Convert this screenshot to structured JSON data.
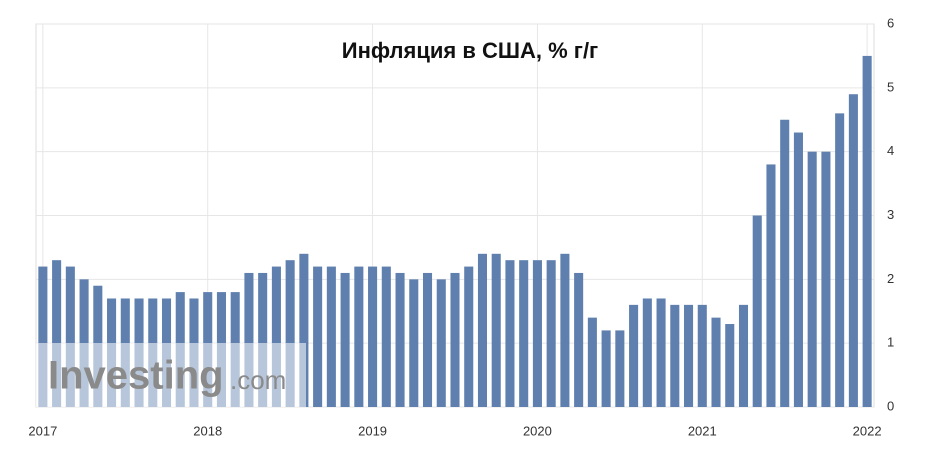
{
  "chart_data": {
    "type": "bar",
    "title": "Инфляция в США, % г/г",
    "watermark": "Investing",
    "watermark_suffix": ".com",
    "categories": [
      "2017",
      null,
      null,
      null,
      null,
      null,
      null,
      null,
      null,
      null,
      null,
      null,
      "2018",
      null,
      null,
      null,
      null,
      null,
      null,
      null,
      null,
      null,
      null,
      null,
      "2019",
      null,
      null,
      null,
      null,
      null,
      null,
      null,
      null,
      null,
      null,
      null,
      "2020",
      null,
      null,
      null,
      null,
      null,
      null,
      null,
      null,
      null,
      null,
      null,
      "2021",
      null,
      null,
      null,
      null,
      null,
      null,
      null,
      null,
      null,
      null,
      null,
      "2022"
    ],
    "values": [
      2.2,
      2.3,
      2.2,
      2.0,
      1.9,
      1.7,
      1.7,
      1.7,
      1.7,
      1.7,
      1.8,
      1.7,
      1.8,
      1.8,
      1.8,
      2.1,
      2.1,
      2.2,
      2.3,
      2.4,
      2.2,
      2.2,
      2.1,
      2.2,
      2.2,
      2.2,
      2.1,
      2.0,
      2.1,
      2.0,
      2.1,
      2.2,
      2.4,
      2.4,
      2.3,
      2.3,
      2.3,
      2.3,
      2.4,
      2.1,
      1.4,
      1.2,
      1.2,
      1.6,
      1.7,
      1.7,
      1.6,
      1.6,
      1.6,
      1.4,
      1.3,
      1.6,
      3.0,
      3.8,
      4.5,
      4.3,
      4.0,
      4.0,
      4.6,
      4.9,
      5.5
    ],
    "color": "#5f80ae",
    "ylim": [
      0,
      6
    ],
    "yticks": [
      0,
      1,
      2,
      3,
      4,
      5,
      6
    ],
    "y_axis_side": "right",
    "grid": true
  }
}
